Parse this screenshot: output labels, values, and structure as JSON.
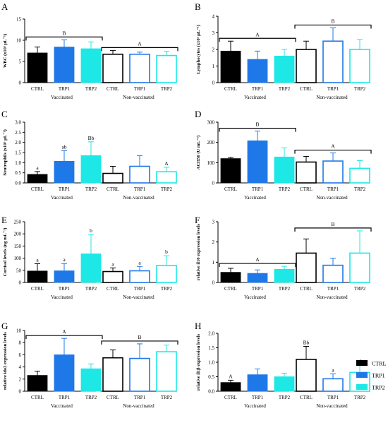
{
  "colors": {
    "CTRL": "#000000",
    "TRP1": "#1f78e8",
    "TRP2": "#1de8e6",
    "axis": "#000000"
  },
  "legend": [
    {
      "label": "CTRL",
      "color": "#000000"
    },
    {
      "label": "TRP1",
      "color": "#1f78e8"
    },
    {
      "label": "TRP2",
      "color": "#1de8e6"
    }
  ],
  "chart_data": [
    {
      "panel": "A",
      "type": "bar",
      "ylabel": "WBC (x10³ µL⁻¹)",
      "ylim": [
        0,
        15
      ],
      "yticks": [
        0,
        5,
        10,
        15
      ],
      "groups": [
        "Vaccinated",
        "Non-vaccinated"
      ],
      "categories": [
        "CTRL",
        "TRP1",
        "TRP2"
      ],
      "values": [
        [
          7.0,
          8.4,
          8.0
        ],
        [
          6.7,
          6.7,
          6.4
        ]
      ],
      "errors": [
        [
          1.4,
          1.7,
          1.6
        ],
        [
          0.9,
          0.5,
          1.0
        ]
      ],
      "bar_letters": [
        [
          "",
          "",
          ""
        ],
        [
          "",
          "",
          ""
        ]
      ],
      "group_letters": [
        "B",
        "A"
      ]
    },
    {
      "panel": "B",
      "type": "bar",
      "ylabel": "Lymphocytes (x10³ µL⁻¹)",
      "ylim": [
        0,
        4
      ],
      "yticks": [
        0,
        1,
        2,
        3,
        4
      ],
      "groups": [
        "Vaccinated",
        "Non-vaccinated"
      ],
      "categories": [
        "CTRL",
        "TRP1",
        "TRP2"
      ],
      "values": [
        [
          1.9,
          1.4,
          1.6
        ],
        [
          2.0,
          2.5,
          2.0
        ]
      ],
      "errors": [
        [
          0.6,
          0.5,
          0.4
        ],
        [
          0.5,
          0.8,
          0.6
        ]
      ],
      "bar_letters": [
        [
          "",
          "",
          ""
        ],
        [
          "",
          "",
          ""
        ]
      ],
      "group_letters": [
        "A",
        "B"
      ]
    },
    {
      "panel": "C",
      "type": "bar",
      "ylabel": "Neutrophils (x10³ µL⁻¹)",
      "ylim": [
        0,
        3
      ],
      "yticks": [
        0.0,
        0.5,
        1.0,
        1.5,
        2.0,
        2.5,
        3.0
      ],
      "groups": [
        "Vaccinated",
        "Non-vaccinated"
      ],
      "categories": [
        "CTRL",
        "TRP1",
        "TRP2"
      ],
      "values": [
        [
          0.42,
          1.07,
          1.35
        ],
        [
          0.47,
          0.82,
          0.55
        ]
      ],
      "errors": [
        [
          0.14,
          0.52,
          0.68
        ],
        [
          0.35,
          0.53,
          0.22
        ]
      ],
      "bar_letters": [
        [
          "a",
          "ab",
          "Bb"
        ],
        [
          "",
          "",
          "A"
        ]
      ],
      "group_letters": [
        "",
        ""
      ]
    },
    {
      "panel": "D",
      "type": "bar",
      "ylabel": "ACH50 (U mL⁻¹)",
      "ylim": [
        0,
        300
      ],
      "yticks": [
        0,
        100,
        200,
        300
      ],
      "groups": [
        "Vaccinated",
        "Non-vaccinated"
      ],
      "categories": [
        "CTRL",
        "TRP1",
        "TRP2"
      ],
      "values": [
        [
          120,
          208,
          128
        ],
        [
          103,
          108,
          72
        ]
      ],
      "errors": [
        [
          6,
          48,
          45
        ],
        [
          28,
          40,
          38
        ]
      ],
      "bar_letters": [
        [
          "",
          "",
          ""
        ],
        [
          "",
          "",
          ""
        ]
      ],
      "group_letters": [
        "B",
        "A"
      ]
    },
    {
      "panel": "E",
      "type": "bar",
      "ylabel": "Cortisol levels (ng mL⁻¹)",
      "ylim": [
        0,
        250
      ],
      "yticks": [
        0,
        50,
        100,
        150,
        200,
        250
      ],
      "groups": [
        "Vaccinated",
        "Non-vaccinated"
      ],
      "categories": [
        "CTRL",
        "TRP1",
        "TRP2"
      ],
      "values": [
        [
          47,
          48,
          118
        ],
        [
          45,
          48,
          70
        ]
      ],
      "errors": [
        [
          30,
          30,
          80
        ],
        [
          15,
          18,
          40
        ]
      ],
      "bar_letters": [
        [
          "a",
          "a",
          "b"
        ],
        [
          "a",
          "a",
          "b"
        ]
      ],
      "group_letters": [
        "",
        ""
      ]
    },
    {
      "panel": "F",
      "type": "bar",
      "ylabel": "relative il10 expression levels",
      "ylim": [
        0,
        3
      ],
      "yticks": [
        0,
        1,
        2,
        3
      ],
      "groups": [
        "Vaccinated",
        "Non-vaccinated"
      ],
      "categories": [
        "CTRL",
        "TRP1",
        "TRP2"
      ],
      "values": [
        [
          0.5,
          0.45,
          0.65
        ],
        [
          1.45,
          0.85,
          1.45
        ]
      ],
      "errors": [
        [
          0.2,
          0.17,
          0.15
        ],
        [
          0.7,
          0.35,
          1.1
        ]
      ],
      "bar_letters": [
        [
          "",
          "",
          ""
        ],
        [
          "",
          "",
          ""
        ]
      ],
      "group_letters": [
        "A",
        "B"
      ]
    },
    {
      "panel": "G",
      "type": "bar",
      "ylabel": "relative ido2 expression levels",
      "ylim": [
        0,
        10
      ],
      "yticks": [
        0,
        2,
        4,
        6,
        8,
        10
      ],
      "groups": [
        "Vaccinated",
        "Non-vaccinated"
      ],
      "categories": [
        "CTRL",
        "TRP1",
        "TRP2"
      ],
      "values": [
        [
          2.6,
          6.0,
          3.7
        ],
        [
          5.5,
          5.4,
          6.5
        ]
      ],
      "errors": [
        [
          0.7,
          2.7,
          0.8
        ],
        [
          1.3,
          2.4,
          1.1
        ]
      ],
      "bar_letters": [
        [
          "",
          "",
          ""
        ],
        [
          "",
          "",
          ""
        ]
      ],
      "group_letters": [
        "A",
        "B"
      ]
    },
    {
      "panel": "H",
      "type": "bar",
      "ylabel": "relative il1β expression levels",
      "ylim": [
        0,
        2
      ],
      "yticks": [
        0.0,
        0.5,
        1.0,
        1.5,
        2.0
      ],
      "groups": [
        "Vaccinated",
        "Non-vaccinated"
      ],
      "categories": [
        "CTRL",
        "TRP1",
        "TRP2"
      ],
      "values": [
        [
          0.3,
          0.57,
          0.5
        ],
        [
          1.1,
          0.43,
          0.65
        ]
      ],
      "errors": [
        [
          0.08,
          0.2,
          0.12
        ],
        [
          0.45,
          0.17,
          0.25
        ]
      ],
      "bar_letters": [
        [
          "A",
          "",
          ""
        ],
        [
          "Bb",
          "a",
          "ab"
        ]
      ],
      "group_letters": [
        "",
        ""
      ]
    }
  ]
}
